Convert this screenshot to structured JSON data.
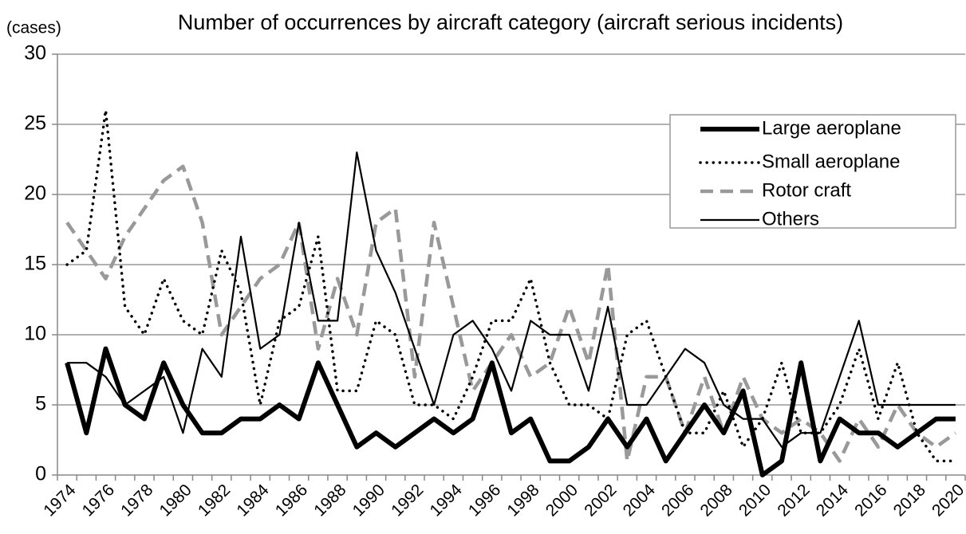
{
  "chart_data": {
    "type": "line",
    "title": "Number of occurrences by aircraft category (aircraft serious incidents)",
    "y_label": "(cases)",
    "categories": [
      "1974",
      null,
      "1976",
      null,
      "1978",
      null,
      "1980",
      null,
      "1982",
      null,
      "1984",
      null,
      "1986",
      null,
      "1988",
      null,
      "1990",
      null,
      "1992",
      null,
      "1994",
      null,
      "1996",
      null,
      "1998",
      null,
      "2000",
      null,
      "2002",
      null,
      "2004",
      null,
      "2006",
      null,
      "2008",
      null,
      "2010",
      null,
      "2012",
      null,
      "2014",
      null,
      "2016",
      null,
      "2018",
      null,
      "2020"
    ],
    "series": [
      {
        "name": "Large aeroplane",
        "color": "#000000",
        "style": "thick",
        "values": [
          8,
          3,
          9,
          5,
          4,
          8,
          5,
          3,
          3,
          4,
          4,
          5,
          4,
          8,
          5,
          2,
          3,
          2,
          3,
          4,
          3,
          4,
          8,
          3,
          4,
          1,
          1,
          2,
          4,
          2,
          4,
          1,
          3,
          5,
          3,
          6,
          0,
          1,
          8,
          1,
          4,
          3,
          3,
          2,
          3,
          4,
          4
        ]
      },
      {
        "name": "Small aeroplane",
        "color": "#000000",
        "style": "dotted",
        "values": [
          15,
          16,
          26,
          12,
          10,
          14,
          11,
          10,
          16,
          13,
          5,
          11,
          12,
          17,
          6,
          6,
          11,
          10,
          5,
          5,
          4,
          7,
          11,
          11,
          14,
          8,
          5,
          5,
          4,
          10,
          11,
          7,
          3,
          3,
          6,
          2,
          4,
          8,
          3,
          3,
          5,
          9,
          4,
          8,
          3,
          1,
          1
        ]
      },
      {
        "name": "Rotor craft",
        "color": "#999999",
        "style": "dashed",
        "values": [
          18,
          16,
          14,
          17,
          19,
          21,
          22,
          18,
          10,
          12,
          14,
          15,
          18,
          9,
          14,
          10,
          18,
          19,
          7,
          18,
          12,
          6,
          8,
          10,
          7,
          8,
          12,
          8,
          15,
          1,
          7,
          7,
          3,
          7,
          3,
          7,
          4,
          3,
          4,
          3,
          1,
          4,
          2,
          5,
          3,
          2,
          3
        ]
      },
      {
        "name": "Others",
        "color": "#000000",
        "style": "thin",
        "values": [
          8,
          8,
          7,
          5,
          6,
          7,
          3,
          9,
          7,
          17,
          9,
          10,
          18,
          11,
          11,
          23,
          16,
          13,
          9,
          5,
          10,
          11,
          9,
          6,
          11,
          10,
          10,
          6,
          12,
          5,
          5,
          7,
          9,
          8,
          5,
          4,
          4,
          2,
          3,
          3,
          7,
          11,
          5,
          5,
          5,
          5,
          5
        ]
      }
    ],
    "ylim": [
      0,
      30
    ],
    "yticks": [
      0,
      5,
      10,
      15,
      20,
      25,
      30
    ],
    "grid": true,
    "legend": "upper right"
  }
}
